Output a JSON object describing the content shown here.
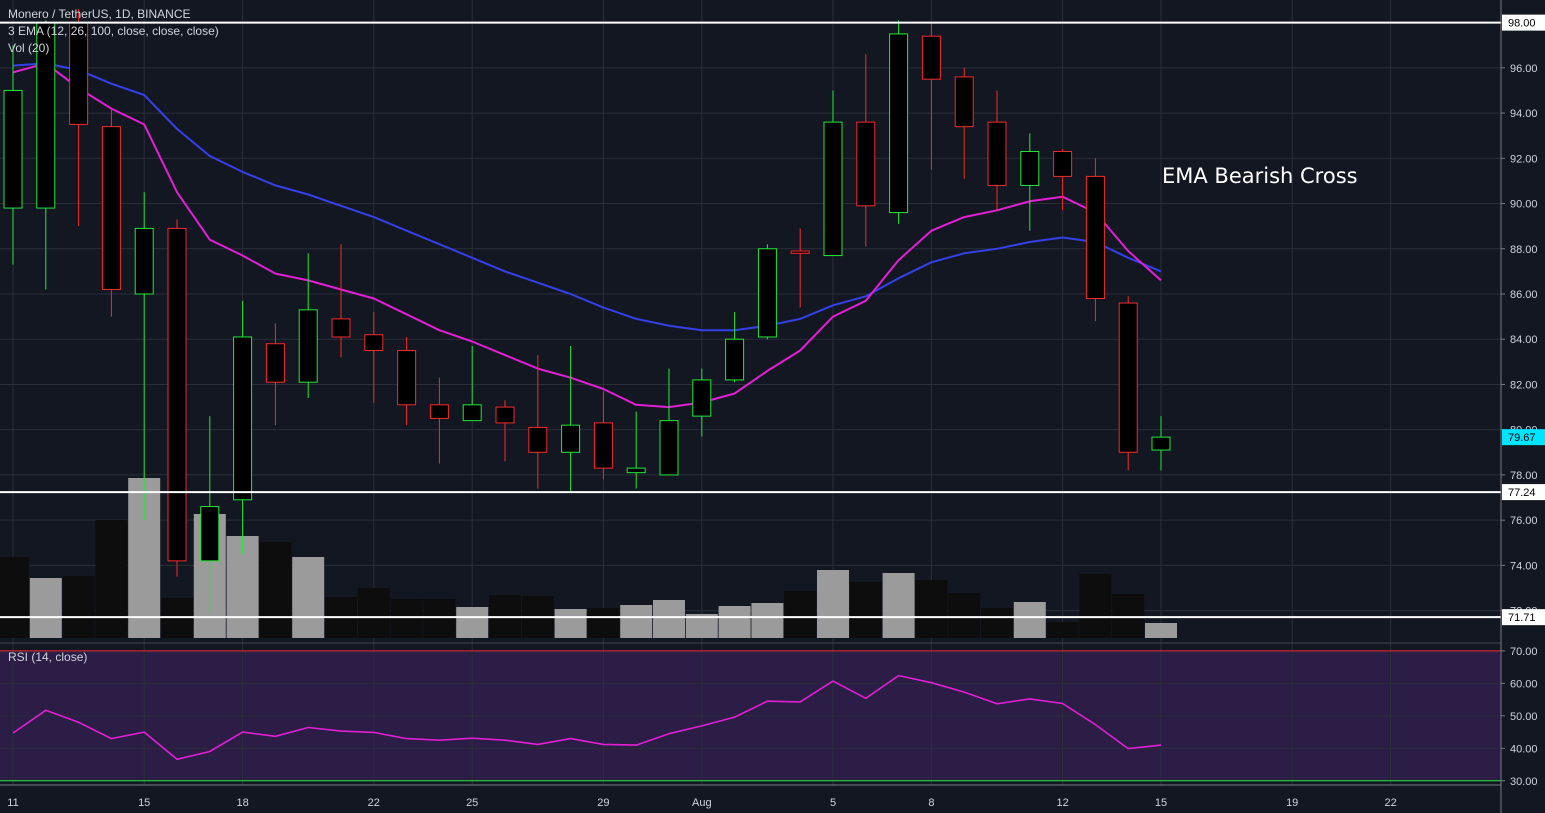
{
  "header": {
    "symbol_line": "Monero / TetherUS, 1D, BINANCE",
    "ema_line": "3 EMA (12, 26, 100, close, close, close)",
    "vol_line": "Vol (20)",
    "rsi_line": "RSI (14, close)"
  },
  "annotation": "EMA Bearish Cross",
  "colors": {
    "background": "#131722",
    "grid": "#2a2e39",
    "up": "#22e836",
    "down": "#f42a2a",
    "ema_fast": "#e21fd5",
    "ema_slow": "#3440e8",
    "rsi_line": "#e21fd5",
    "rsi_band": "#2b1d45",
    "volume_up": "#9b9b9b",
    "volume_down": "#0d0d0d",
    "current_price_bg": "#00e5ff",
    "hline": "#ffffff"
  },
  "chart_data": [
    {
      "type": "candlestick",
      "title": "Monero / TetherUS, 1D, BINANCE",
      "x_tick_labels": [
        "11",
        "15",
        "18",
        "22",
        "25",
        "29",
        "Aug",
        "5",
        "8",
        "12",
        "15",
        "19",
        "22"
      ],
      "x_tick_slots": [
        0,
        4,
        7,
        11,
        14,
        18,
        21,
        25,
        28,
        32,
        35,
        39,
        42
      ],
      "y_ticks": [
        "98.00",
        "96.00",
        "94.00",
        "92.00",
        "90.00",
        "88.00",
        "86.00",
        "84.00",
        "82.00",
        "80.00",
        "78.00",
        "76.00",
        "74.00",
        "72.00"
      ],
      "ylim": [
        70.7,
        99.0
      ],
      "candles": [
        {
          "o": 89.8,
          "h": 97.0,
          "l": 87.3,
          "c": 95.0
        },
        {
          "o": 89.8,
          "h": 98.1,
          "l": 86.2,
          "c": 98.0
        },
        {
          "o": 98.0,
          "h": 98.6,
          "l": 89.0,
          "c": 93.5
        },
        {
          "o": 93.4,
          "h": 94.2,
          "l": 85.0,
          "c": 86.2
        },
        {
          "o": 86.0,
          "h": 90.5,
          "l": 76.0,
          "c": 88.9
        },
        {
          "o": 88.9,
          "h": 89.3,
          "l": 73.5,
          "c": 74.2
        },
        {
          "o": 74.2,
          "h": 80.6,
          "l": 71.9,
          "c": 76.6
        },
        {
          "o": 76.9,
          "h": 85.7,
          "l": 74.5,
          "c": 84.1
        },
        {
          "o": 83.8,
          "h": 84.7,
          "l": 80.2,
          "c": 82.1
        },
        {
          "o": 82.1,
          "h": 87.8,
          "l": 81.4,
          "c": 85.3
        },
        {
          "o": 84.9,
          "h": 88.2,
          "l": 83.2,
          "c": 84.1
        },
        {
          "o": 84.2,
          "h": 85.2,
          "l": 81.2,
          "c": 83.5
        },
        {
          "o": 83.5,
          "h": 84.1,
          "l": 80.2,
          "c": 81.1
        },
        {
          "o": 81.1,
          "h": 82.3,
          "l": 78.5,
          "c": 80.5
        },
        {
          "o": 80.4,
          "h": 83.7,
          "l": 80.4,
          "c": 81.1
        },
        {
          "o": 81.0,
          "h": 81.3,
          "l": 78.6,
          "c": 80.3
        },
        {
          "o": 80.1,
          "h": 83.3,
          "l": 77.4,
          "c": 79.0
        },
        {
          "o": 79.0,
          "h": 83.7,
          "l": 77.2,
          "c": 80.2
        },
        {
          "o": 80.3,
          "h": 81.7,
          "l": 77.8,
          "c": 78.3
        },
        {
          "o": 78.1,
          "h": 80.8,
          "l": 77.4,
          "c": 78.3
        },
        {
          "o": 78.0,
          "h": 82.7,
          "l": 78.0,
          "c": 80.4
        },
        {
          "o": 80.6,
          "h": 82.7,
          "l": 79.7,
          "c": 82.2
        },
        {
          "o": 82.2,
          "h": 85.2,
          "l": 82.1,
          "c": 84.0
        },
        {
          "o": 84.1,
          "h": 88.2,
          "l": 84.0,
          "c": 88.0
        },
        {
          "o": 87.9,
          "h": 88.9,
          "l": 85.4,
          "c": 87.8
        },
        {
          "o": 87.7,
          "h": 95.0,
          "l": 87.7,
          "c": 93.6
        },
        {
          "o": 93.6,
          "h": 96.6,
          "l": 88.1,
          "c": 89.9
        },
        {
          "o": 89.6,
          "h": 98.1,
          "l": 89.1,
          "c": 97.5
        },
        {
          "o": 97.4,
          "h": 98.0,
          "l": 91.5,
          "c": 95.5
        },
        {
          "o": 95.6,
          "h": 96.0,
          "l": 91.1,
          "c": 93.4
        },
        {
          "o": 93.6,
          "h": 95.0,
          "l": 89.7,
          "c": 90.8
        },
        {
          "o": 90.8,
          "h": 93.1,
          "l": 88.8,
          "c": 92.3
        },
        {
          "o": 92.3,
          "h": 92.4,
          "l": 89.7,
          "c": 91.2
        },
        {
          "o": 91.2,
          "h": 92.0,
          "l": 84.8,
          "c": 85.8
        },
        {
          "o": 85.6,
          "h": 85.9,
          "l": 78.2,
          "c": 79.0
        },
        {
          "o": 79.1,
          "h": 80.6,
          "l": 78.2,
          "c": 79.67
        }
      ],
      "volume": [
        0.81,
        0.6,
        0.62,
        1.18,
        1.6,
        0.4,
        1.24,
        1.02,
        0.96,
        0.81,
        0.41,
        0.5,
        0.39,
        0.39,
        0.31,
        0.43,
        0.42,
        0.29,
        0.3,
        0.33,
        0.38,
        0.24,
        0.32,
        0.35,
        0.47,
        0.68,
        0.56,
        0.65,
        0.58,
        0.45,
        0.3,
        0.36,
        0.16,
        0.64,
        0.44,
        0.15
      ],
      "volume_up": [
        false,
        true,
        false,
        false,
        true,
        false,
        true,
        true,
        false,
        true,
        false,
        false,
        false,
        false,
        true,
        false,
        false,
        true,
        false,
        true,
        true,
        true,
        true,
        true,
        false,
        true,
        false,
        true,
        false,
        false,
        false,
        true,
        false,
        false,
        false,
        true
      ],
      "ema_fast": [
        95.8,
        96.2,
        95.1,
        94.2,
        93.5,
        90.5,
        88.4,
        87.7,
        86.9,
        86.6,
        86.2,
        85.8,
        85.1,
        84.4,
        83.9,
        83.3,
        82.7,
        82.3,
        81.8,
        81.1,
        81.0,
        81.2,
        81.6,
        82.6,
        83.5,
        85.0,
        85.7,
        87.5,
        88.8,
        89.4,
        89.7,
        90.1,
        90.3,
        89.6,
        87.9,
        86.6
      ],
      "ema_slow": [
        96.1,
        96.2,
        95.9,
        95.3,
        94.8,
        93.3,
        92.1,
        91.4,
        90.8,
        90.4,
        89.9,
        89.4,
        88.8,
        88.2,
        87.6,
        87.0,
        86.5,
        86.0,
        85.4,
        84.9,
        84.6,
        84.4,
        84.4,
        84.6,
        84.9,
        85.5,
        85.9,
        86.7,
        87.4,
        87.8,
        88.0,
        88.3,
        88.5,
        88.3,
        87.6,
        87.0
      ],
      "hlines": [
        98.0,
        77.24,
        71.71
      ],
      "price_labels": [
        {
          "value": 98.0,
          "text": "98.00",
          "style": "white"
        },
        {
          "value": 77.24,
          "text": "77.24",
          "style": "white"
        },
        {
          "value": 71.71,
          "text": "71.71",
          "style": "white"
        },
        {
          "value": 79.67,
          "text": "79.67",
          "style": "current"
        }
      ]
    },
    {
      "type": "line",
      "title": "RSI (14, close)",
      "y_ticks": [
        "70.00",
        "60.00",
        "50.00",
        "40.00",
        "30.00"
      ],
      "ylim": [
        28.7,
        71.5
      ],
      "band": [
        30,
        70
      ],
      "values": [
        44.7,
        51.7,
        48.0,
        43.0,
        45.0,
        36.6,
        39.0,
        45.0,
        43.7,
        46.4,
        45.3,
        44.9,
        43.0,
        42.5,
        43.1,
        42.5,
        41.2,
        43.0,
        41.2,
        41.0,
        44.5,
        46.9,
        49.6,
        54.5,
        54.3,
        60.7,
        55.4,
        62.4,
        60.2,
        57.3,
        53.7,
        55.2,
        53.8,
        47.3,
        39.9,
        41.0
      ]
    }
  ]
}
